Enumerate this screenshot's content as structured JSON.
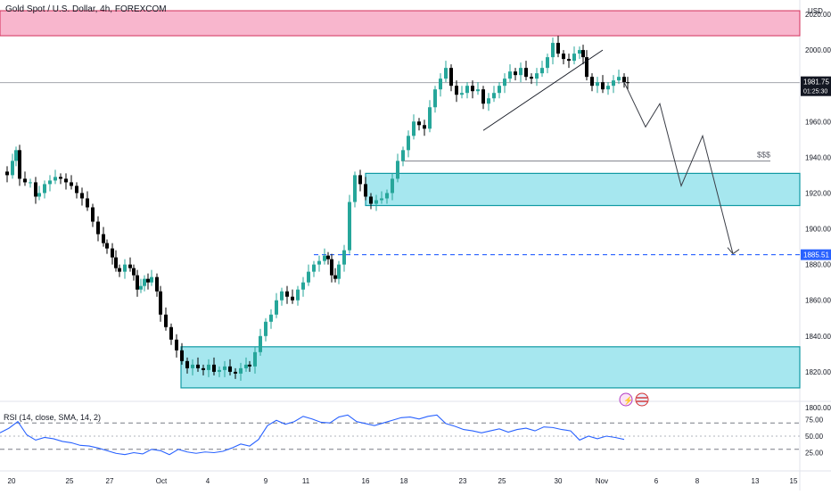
{
  "header": {
    "title": "Gold Spot / U.S. Dollar, 4h, FOREXCOM",
    "currency": "USD"
  },
  "price_scale": {
    "current_price": "1981.75",
    "countdown": "01:25:30",
    "target_label": "1885.51"
  },
  "annotations": {
    "liquidity_label": "$$$"
  },
  "rsi": {
    "label": "RSI (14, close, SMA, 14, 2)",
    "ticks": [
      "75.00",
      "50.00",
      "25.00"
    ]
  },
  "chart_data": [
    {
      "type": "candlestick",
      "title": "Gold Spot / U.S. Dollar, 4h, FOREXCOM",
      "ylim": [
        1790,
        2025
      ],
      "y_ticks": [
        2020,
        2000,
        1980,
        1960,
        1940,
        1920,
        1900,
        1880,
        1860,
        1840,
        1820,
        1800
      ],
      "y_tick_labels": [
        "2020.00",
        "2000.00",
        "1980.00",
        "1960.00",
        "1940.00",
        "1920.00",
        "1900.00",
        "1880.00",
        "1860.00",
        "1840.00",
        "1820.00",
        "1800.00"
      ],
      "x_tick_labels": [
        "20",
        "25",
        "27",
        "Oct",
        "4",
        "9",
        "11",
        "16",
        "18",
        "23",
        "25",
        "30",
        "Nov",
        "6",
        "8",
        "13",
        "15"
      ],
      "close_path": [
        [
          0,
          1932
        ],
        [
          8,
          1930
        ],
        [
          14,
          1938
        ],
        [
          18,
          1944
        ],
        [
          22,
          1928
        ],
        [
          28,
          1926
        ],
        [
          34,
          1926
        ],
        [
          40,
          1918
        ],
        [
          44,
          1920
        ],
        [
          50,
          1925
        ],
        [
          56,
          1927
        ],
        [
          62,
          1929
        ],
        [
          68,
          1928
        ],
        [
          74,
          1926
        ],
        [
          80,
          1924
        ],
        [
          86,
          1920
        ],
        [
          92,
          1917
        ],
        [
          98,
          1912
        ],
        [
          104,
          1904
        ],
        [
          110,
          1897
        ],
        [
          116,
          1892
        ],
        [
          120,
          1889
        ],
        [
          126,
          1884
        ],
        [
          130,
          1878
        ],
        [
          134,
          1876
        ],
        [
          140,
          1880
        ],
        [
          146,
          1878
        ],
        [
          150,
          1874
        ],
        [
          154,
          1866
        ],
        [
          158,
          1868
        ],
        [
          162,
          1872
        ],
        [
          166,
          1870
        ],
        [
          170,
          1873
        ],
        [
          176,
          1865
        ],
        [
          180,
          1852
        ],
        [
          186,
          1845
        ],
        [
          192,
          1838
        ],
        [
          198,
          1832
        ],
        [
          204,
          1826
        ],
        [
          210,
          1822
        ],
        [
          216,
          1824
        ],
        [
          222,
          1822
        ],
        [
          228,
          1821
        ],
        [
          234,
          1824
        ],
        [
          240,
          1820
        ],
        [
          246,
          1821
        ],
        [
          252,
          1823
        ],
        [
          258,
          1820
        ],
        [
          264,
          1819
        ],
        [
          270,
          1822
        ],
        [
          276,
          1824
        ],
        [
          280,
          1823
        ],
        [
          286,
          1831
        ],
        [
          292,
          1840
        ],
        [
          298,
          1848
        ],
        [
          304,
          1852
        ],
        [
          310,
          1860
        ],
        [
          316,
          1865
        ],
        [
          322,
          1862
        ],
        [
          328,
          1860
        ],
        [
          334,
          1866
        ],
        [
          340,
          1870
        ],
        [
          346,
          1876
        ],
        [
          352,
          1880
        ],
        [
          358,
          1882
        ],
        [
          364,
          1885
        ],
        [
          368,
          1883
        ],
        [
          372,
          1874
        ],
        [
          376,
          1872
        ],
        [
          380,
          1880
        ],
        [
          386,
          1888
        ],
        [
          392,
          1915
        ],
        [
          398,
          1930
        ],
        [
          404,
          1925
        ],
        [
          410,
          1918
        ],
        [
          416,
          1914
        ],
        [
          422,
          1916
        ],
        [
          428,
          1917
        ],
        [
          434,
          1920
        ],
        [
          440,
          1928
        ],
        [
          446,
          1938
        ],
        [
          452,
          1944
        ],
        [
          458,
          1952
        ],
        [
          464,
          1960
        ],
        [
          470,
          1958
        ],
        [
          476,
          1956
        ],
        [
          482,
          1968
        ],
        [
          488,
          1978
        ],
        [
          494,
          1984
        ],
        [
          500,
          1990
        ],
        [
          506,
          1980
        ],
        [
          512,
          1975
        ],
        [
          518,
          1976
        ],
        [
          524,
          1980
        ],
        [
          530,
          1977
        ],
        [
          536,
          1978
        ],
        [
          542,
          1970
        ],
        [
          548,
          1973
        ],
        [
          554,
          1976
        ],
        [
          560,
          1980
        ],
        [
          566,
          1984
        ],
        [
          572,
          1988
        ],
        [
          578,
          1986
        ],
        [
          584,
          1990
        ],
        [
          590,
          1985
        ],
        [
          596,
          1984
        ],
        [
          602,
          1987
        ],
        [
          608,
          1990
        ],
        [
          614,
          1996
        ],
        [
          620,
          2004
        ],
        [
          626,
          1998
        ],
        [
          632,
          1995
        ],
        [
          638,
          1994
        ],
        [
          644,
          1998
        ],
        [
          650,
          2000
        ],
        [
          654,
          1996
        ],
        [
          658,
          1985
        ],
        [
          664,
          1980
        ],
        [
          670,
          1982
        ],
        [
          676,
          1978
        ],
        [
          682,
          1980
        ],
        [
          688,
          1983
        ],
        [
          694,
          1985
        ],
        [
          700,
          1982
        ],
        [
          704,
          1981.75
        ]
      ],
      "supply_zone": [
        2008,
        2022
      ],
      "demand_zones": [
        [
          1913,
          1931
        ],
        [
          1811,
          1834
        ]
      ],
      "target_level": 1885.51,
      "liquidity_level": 1938
    },
    {
      "type": "line",
      "title": "RSI (14, close, SMA, 14, 2)",
      "ylim": [
        0,
        100
      ],
      "levels": [
        70,
        50,
        30
      ],
      "y_tick_labels": [
        "75.00",
        "50.00",
        "25.00"
      ],
      "x": [
        0,
        10,
        20,
        30,
        40,
        50,
        60,
        70,
        80,
        90,
        100,
        110,
        120,
        130,
        140,
        150,
        160,
        170,
        180,
        190,
        200,
        210,
        220,
        230,
        240,
        250,
        260,
        270,
        280,
        290,
        300,
        310,
        320,
        330,
        340,
        350,
        360,
        370,
        380,
        390,
        400,
        410,
        420,
        430,
        440,
        450,
        460,
        470,
        480,
        490,
        500,
        510,
        520,
        530,
        540,
        550,
        560,
        570,
        580,
        590,
        600,
        610,
        620,
        630,
        640,
        650,
        660,
        670,
        680,
        690,
        700
      ],
      "values": [
        55,
        62,
        72,
        52,
        44,
        48,
        46,
        42,
        40,
        36,
        35,
        32,
        28,
        24,
        22,
        25,
        23,
        30,
        28,
        22,
        30,
        26,
        24,
        26,
        25,
        27,
        32,
        38,
        35,
        45,
        66,
        74,
        68,
        72,
        80,
        76,
        71,
        70,
        79,
        82,
        72,
        69,
        66,
        70,
        74,
        78,
        79,
        76,
        80,
        82,
        69,
        65,
        60,
        58,
        55,
        58,
        61,
        56,
        60,
        62,
        58,
        64,
        63,
        60,
        58,
        44,
        50,
        46,
        50,
        48,
        45
      ]
    }
  ]
}
